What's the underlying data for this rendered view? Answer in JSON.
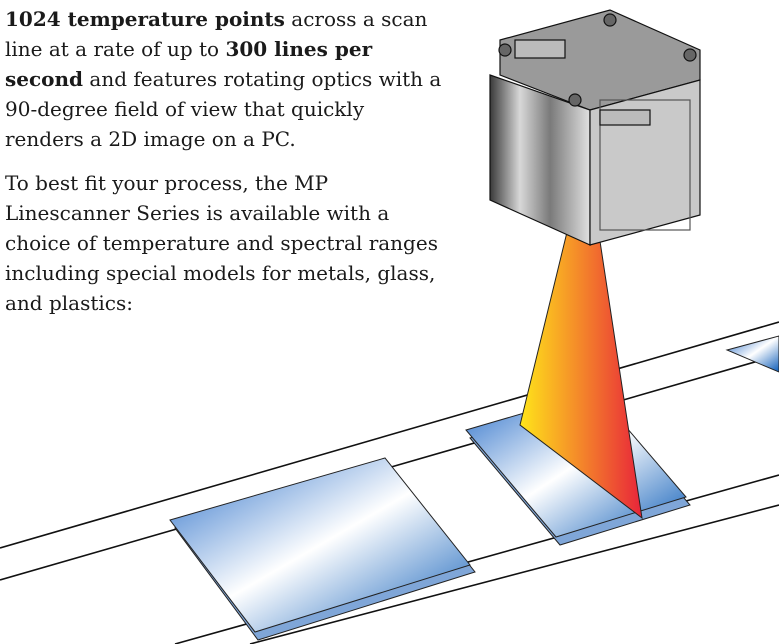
{
  "paragraphs": [
    {
      "runs": [
        "1024 temperature points",
        " across a scan line at a rate of up to ",
        "300 lines per second",
        " and features rotating optics with a 90-degree field of view that quickly renders a 2D image on a PC."
      ]
    },
    {
      "runs": [
        "To best fit your process, the MP Linescanner Series is available with a choice of temperature and spectral ranges including special models for metals, glass, and plastics:"
      ]
    }
  ]
}
